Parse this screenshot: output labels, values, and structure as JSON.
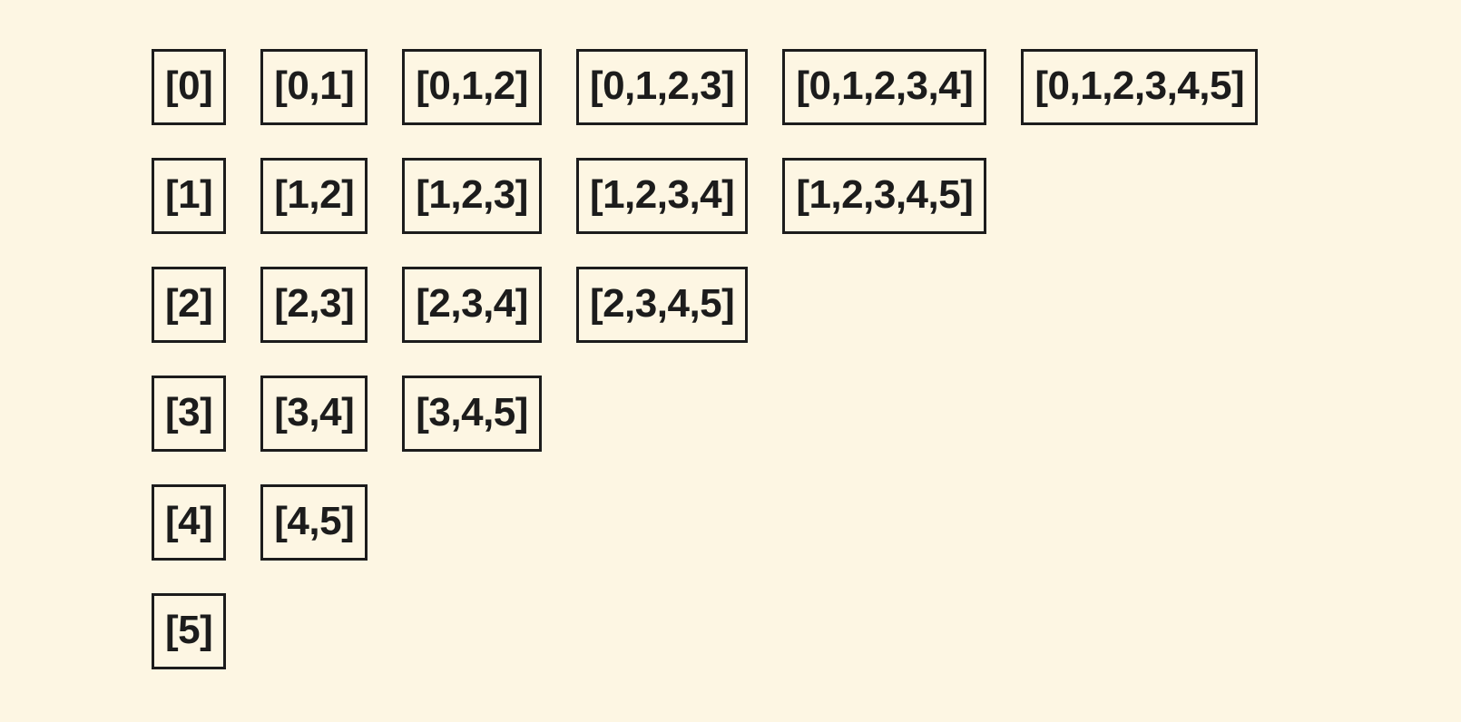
{
  "colors": {
    "background": "#FDF6E3",
    "box_border": "#1c1c1c",
    "text": "#1c1c1c"
  },
  "diagram": {
    "rows": [
      {
        "boxes": [
          "[0]",
          "[0,1]",
          "[0,1,2]",
          "[0,1,2,3]",
          "[0,1,2,3,4]",
          "[0,1,2,3,4,5]"
        ]
      },
      {
        "boxes": [
          "[1]",
          "[1,2]",
          "[1,2,3]",
          "[1,2,3,4]",
          "[1,2,3,4,5]"
        ]
      },
      {
        "boxes": [
          "[2]",
          "[2,3]",
          "[2,3,4]",
          "[2,3,4,5]"
        ]
      },
      {
        "boxes": [
          "[3]",
          "[3,4]",
          "[3,4,5]"
        ]
      },
      {
        "boxes": [
          "[4]",
          "[4,5]"
        ]
      },
      {
        "boxes": [
          "[5]"
        ]
      }
    ]
  }
}
